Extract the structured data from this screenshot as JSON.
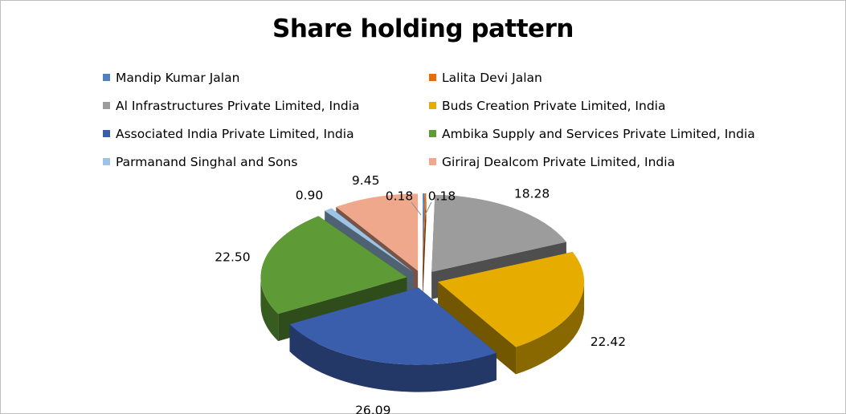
{
  "chart_data": {
    "type": "pie",
    "title": "Share holding pattern",
    "legend_position": "top",
    "style": "3d-exploded",
    "slices": [
      {
        "name": "Mandip Kumar Jalan",
        "value": 0.18,
        "label": "0.18",
        "color": "#4f81bd"
      },
      {
        "name": "Lalita Devi Jalan",
        "value": 0.18,
        "label": "0.18",
        "color": "#e46c0a"
      },
      {
        "name": "Al Infrastructures Private Limited,  India",
        "value": 18.28,
        "label": "18.28",
        "color": "#9c9c9c"
      },
      {
        "name": "Buds Creation Private Limited,  India",
        "value": 22.42,
        "label": "22.42",
        "color": "#e6ad00"
      },
      {
        "name": "Associated India Private Limited,  India",
        "value": 26.09,
        "label": "26.09",
        "color": "#3a5eab"
      },
      {
        "name": "Ambika Supply and Services Private Limited,  India",
        "value": 22.5,
        "label": "22.50",
        "color": "#5e9a35"
      },
      {
        "name": "Parmanand Singhal and Sons",
        "value": 0.9,
        "label": "0.90",
        "color": "#9dc3e6"
      },
      {
        "name": "Giriraj Dealcom  Private Limited,  India",
        "value": 9.45,
        "label": "9.45",
        "color": "#f0a88c"
      }
    ]
  }
}
